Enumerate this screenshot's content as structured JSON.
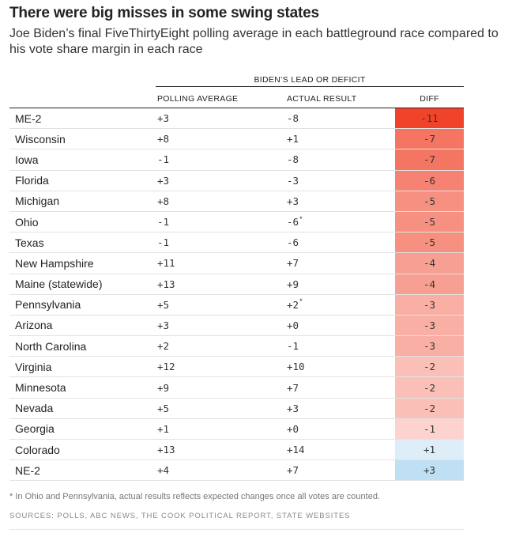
{
  "title": "There were big misses in some swing states",
  "subtitle": "Joe Biden’s final FiveThirtyEight polling average in each battleground race compared to his vote share margin in each race",
  "footnote": "* In Ohio and Pennsylvania, actual results reflects expected changes once all votes are counted.",
  "sources": "SOURCES: POLLS, ABC NEWS, THE COOK POLITICAL REPORT, STATE WEBSITES",
  "colors": {
    "negative": "#f0432a",
    "positive": "#bfe0f4",
    "neutral": "#ffffff"
  },
  "chart_data": {
    "type": "table",
    "group_header": "BIDEN’S LEAD OR DEFICIT",
    "columns": [
      "POLLING AVERAGE",
      "ACTUAL RESULT",
      "DIFF"
    ],
    "rows": [
      {
        "state": "ME-2",
        "poll": "+3",
        "actual": "-8",
        "diff": "-11",
        "diff_value": -11,
        "asterisk": false
      },
      {
        "state": "Wisconsin",
        "poll": "+8",
        "actual": "+1",
        "diff": "-7",
        "diff_value": -7,
        "asterisk": false
      },
      {
        "state": "Iowa",
        "poll": "-1",
        "actual": "-8",
        "diff": "-7",
        "diff_value": -7,
        "asterisk": false
      },
      {
        "state": "Florida",
        "poll": "+3",
        "actual": "-3",
        "diff": "-6",
        "diff_value": -6,
        "asterisk": false
      },
      {
        "state": "Michigan",
        "poll": "+8",
        "actual": "+3",
        "diff": "-5",
        "diff_value": -5,
        "asterisk": false
      },
      {
        "state": "Ohio",
        "poll": "-1",
        "actual": "-6",
        "diff": "-5",
        "diff_value": -5,
        "asterisk": true
      },
      {
        "state": "Texas",
        "poll": "-1",
        "actual": "-6",
        "diff": "-5",
        "diff_value": -5,
        "asterisk": false
      },
      {
        "state": "New Hampshire",
        "poll": "+11",
        "actual": "+7",
        "diff": "-4",
        "diff_value": -4,
        "asterisk": false
      },
      {
        "state": "Maine (statewide)",
        "poll": "+13",
        "actual": "+9",
        "diff": "-4",
        "diff_value": -4,
        "asterisk": false
      },
      {
        "state": "Pennsylvania",
        "poll": "+5",
        "actual": "+2",
        "diff": "-3",
        "diff_value": -3,
        "asterisk": true
      },
      {
        "state": "Arizona",
        "poll": "+3",
        "actual": "+0",
        "diff": "-3",
        "diff_value": -3,
        "asterisk": false
      },
      {
        "state": "North Carolina",
        "poll": "+2",
        "actual": "-1",
        "diff": "-3",
        "diff_value": -3,
        "asterisk": false
      },
      {
        "state": "Virginia",
        "poll": "+12",
        "actual": "+10",
        "diff": "-2",
        "diff_value": -2,
        "asterisk": false
      },
      {
        "state": "Minnesota",
        "poll": "+9",
        "actual": "+7",
        "diff": "-2",
        "diff_value": -2,
        "asterisk": false
      },
      {
        "state": "Nevada",
        "poll": "+5",
        "actual": "+3",
        "diff": "-2",
        "diff_value": -2,
        "asterisk": false
      },
      {
        "state": "Georgia",
        "poll": "+1",
        "actual": "+0",
        "diff": "-1",
        "diff_value": -1,
        "asterisk": false
      },
      {
        "state": "Colorado",
        "poll": "+13",
        "actual": "+14",
        "diff": "+1",
        "diff_value": 1,
        "asterisk": false
      },
      {
        "state": "NE-2",
        "poll": "+4",
        "actual": "+7",
        "diff": "+3",
        "diff_value": 3,
        "asterisk": false
      }
    ]
  }
}
